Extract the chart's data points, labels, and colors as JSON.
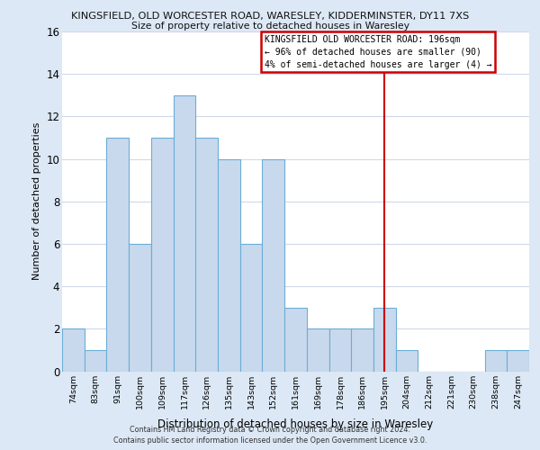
{
  "title1": "KINGSFIELD, OLD WORCESTER ROAD, WARESLEY, KIDDERMINSTER, DY11 7XS",
  "title2": "Size of property relative to detached houses in Waresley",
  "xlabel": "Distribution of detached houses by size in Waresley",
  "ylabel": "Number of detached properties",
  "categories": [
    "74sqm",
    "83sqm",
    "91sqm",
    "100sqm",
    "109sqm",
    "117sqm",
    "126sqm",
    "135sqm",
    "143sqm",
    "152sqm",
    "161sqm",
    "169sqm",
    "178sqm",
    "186sqm",
    "195sqm",
    "204sqm",
    "212sqm",
    "221sqm",
    "230sqm",
    "238sqm",
    "247sqm"
  ],
  "values": [
    2,
    1,
    11,
    6,
    11,
    13,
    11,
    10,
    6,
    10,
    3,
    2,
    2,
    2,
    3,
    1,
    0,
    0,
    0,
    1,
    1
  ],
  "bar_color": "#c9d9ed",
  "bar_edge_color": "#6aaed6",
  "marker_index": 14,
  "annotation_title": "KINGSFIELD OLD WORCESTER ROAD: 196sqm",
  "annotation_line1": "← 96% of detached houses are smaller (90)",
  "annotation_line2": "4% of semi-detached houses are larger (4) →",
  "annotation_box_facecolor": "#ffffff",
  "annotation_border_color": "#cc0000",
  "vline_color": "#cc0000",
  "ylim": [
    0,
    16
  ],
  "yticks": [
    0,
    2,
    4,
    6,
    8,
    10,
    12,
    14,
    16
  ],
  "footer": "Contains HM Land Registry data © Crown copyright and database right 2024.\nContains public sector information licensed under the Open Government Licence v3.0.",
  "fig_bg_color": "#dce8f5",
  "plot_bg_color": "#ffffff",
  "grid_color": "#d0d8e8"
}
